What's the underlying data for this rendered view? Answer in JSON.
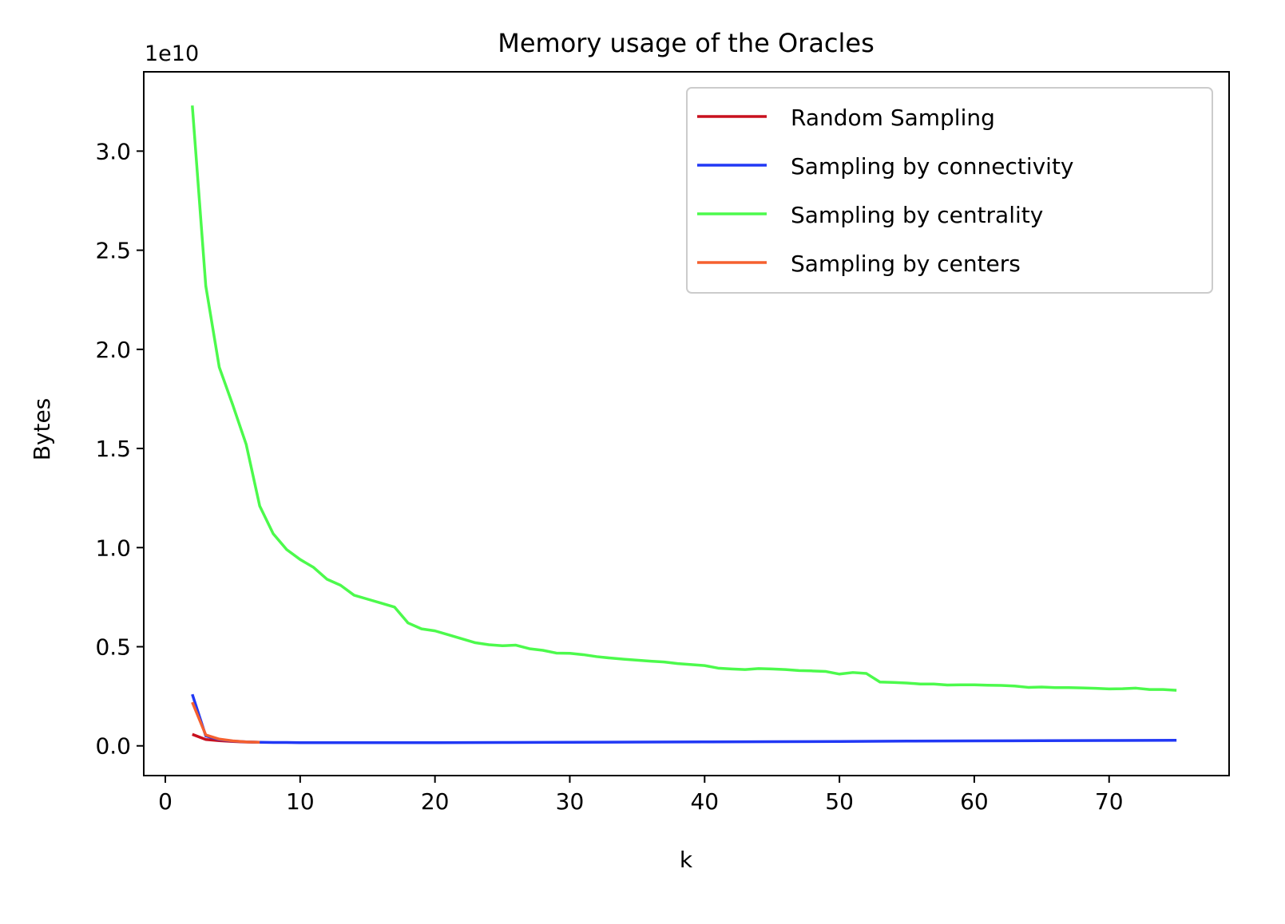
{
  "chart_data": {
    "type": "line",
    "title": "Memory usage of the Oracles",
    "xlabel": "k",
    "ylabel": "Bytes",
    "y_offset_label": "1e10",
    "xlim": [
      -1.6,
      78.9
    ],
    "ylim": [
      -0.15,
      3.4
    ],
    "xticks": [
      0,
      10,
      20,
      30,
      40,
      50,
      60,
      70
    ],
    "yticks": [
      0.0,
      0.5,
      1.0,
      1.5,
      2.0,
      2.5,
      3.0
    ],
    "ytick_labels": [
      "0.0",
      "0.5",
      "1.0",
      "1.5",
      "2.0",
      "2.5",
      "3.0"
    ],
    "grid": false,
    "legend_position": "top-right",
    "series": [
      {
        "name": "Random Sampling",
        "color": "#c8101e",
        "x": [
          2,
          3,
          4,
          5,
          6,
          7
        ],
        "y": [
          0.058,
          0.032,
          0.026,
          0.022,
          0.019,
          0.018
        ]
      },
      {
        "name": "Sampling by connectivity",
        "color": "#2138f5",
        "x": [
          2,
          3,
          4,
          5,
          6,
          7,
          8,
          9,
          10,
          12,
          15,
          20,
          25,
          30,
          35,
          40,
          45,
          50,
          55,
          60,
          65,
          70,
          75
        ],
        "y": [
          0.26,
          0.05,
          0.032,
          0.024,
          0.02,
          0.018,
          0.017,
          0.017,
          0.016,
          0.016,
          0.016,
          0.016,
          0.017,
          0.018,
          0.019,
          0.02,
          0.021,
          0.022,
          0.024,
          0.025,
          0.026,
          0.027,
          0.028
        ]
      },
      {
        "name": "Sampling by centrality",
        "color": "#4cfa4c",
        "x": [
          2,
          3,
          4,
          5,
          6,
          7,
          8,
          9,
          10,
          11,
          12,
          13,
          14,
          15,
          16,
          17,
          18,
          19,
          20,
          21,
          22,
          23,
          24,
          25,
          26,
          27,
          28,
          29,
          30,
          31,
          32,
          33,
          34,
          35,
          36,
          37,
          38,
          39,
          40,
          41,
          42,
          43,
          44,
          45,
          46,
          47,
          48,
          49,
          50,
          51,
          52,
          53,
          54,
          55,
          56,
          57,
          58,
          59,
          60,
          61,
          62,
          63,
          64,
          65,
          66,
          67,
          68,
          69,
          70,
          71,
          72,
          73,
          74,
          75
        ],
        "y": [
          3.23,
          2.32,
          1.91,
          1.72,
          1.52,
          1.21,
          1.07,
          0.99,
          0.94,
          0.9,
          0.84,
          0.81,
          0.76,
          0.74,
          0.72,
          0.7,
          0.62,
          0.59,
          0.58,
          0.56,
          0.54,
          0.52,
          0.51,
          0.505,
          0.508,
          0.49,
          0.482,
          0.468,
          0.467,
          0.46,
          0.45,
          0.443,
          0.437,
          0.432,
          0.427,
          0.423,
          0.415,
          0.41,
          0.405,
          0.392,
          0.388,
          0.385,
          0.39,
          0.388,
          0.385,
          0.38,
          0.378,
          0.375,
          0.362,
          0.37,
          0.365,
          0.322,
          0.32,
          0.317,
          0.312,
          0.312,
          0.307,
          0.308,
          0.308,
          0.306,
          0.305,
          0.302,
          0.295,
          0.297,
          0.294,
          0.294,
          0.292,
          0.29,
          0.287,
          0.288,
          0.291,
          0.284,
          0.284,
          0.28
        ]
      },
      {
        "name": "Sampling by centers",
        "color": "#f5602f",
        "x": [
          2,
          3,
          4,
          5,
          6,
          7
        ],
        "y": [
          0.22,
          0.055,
          0.034,
          0.025,
          0.02,
          0.018
        ]
      }
    ]
  }
}
